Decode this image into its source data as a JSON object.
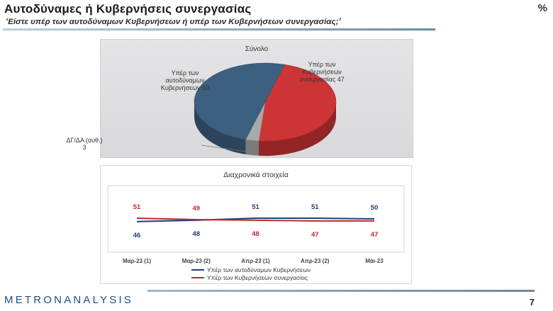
{
  "header": {
    "title": "Αυτοδύναμες ή Κυβερνήσεις συνεργασίας",
    "subtitle": "‘Είστε υπέρ των αυτοδύναμων Κυβερνήσεων ή υπέρ των Κυβερνήσεων συνεργασίας;’",
    "unit": "%"
  },
  "footer": {
    "logo": "METRONANALYSIS",
    "page_number": "7"
  },
  "colors": {
    "blue": "#355c7d",
    "red": "#cc2a2a",
    "grey": "#a8a8a8"
  },
  "chart_data": [
    {
      "type": "pie",
      "title": "Σύνολο",
      "slices": [
        {
          "label_lines": [
            "Υπέρ των",
            "αυτοδύναμων",
            "Κυβερνήσεων 50"
          ],
          "category": "Υπέρ των αυτοδύναμων Κυβερνήσεων",
          "value": 50,
          "color": "#3d5f80"
        },
        {
          "label_lines": [
            "Υπέρ των",
            "Κυβερνήσεων",
            "συνεργασίας 47"
          ],
          "category": "Υπέρ των Κυβερνήσεων συνεργασίας",
          "value": 47,
          "color": "#cd3436"
        },
        {
          "label_lines": [
            "ΔΓ/ΔΑ (αυθ.)",
            "3"
          ],
          "category": "ΔΓ/ΔΑ (αυθ.)",
          "value": 3,
          "color": "#a9a9a9"
        }
      ]
    },
    {
      "type": "line",
      "title": "Διαχρονικά στοιχεία",
      "categories": [
        "Μαρ-23 (1)",
        "Μαρ-23 (2)",
        "Απρ-23 (1)",
        "Απρ-23 (2)",
        "Μάι-23"
      ],
      "ylim": [
        0,
        100
      ],
      "series": [
        {
          "name": "Υπέρ των αυτοδύναμων Κυβερνήσεων",
          "values": [
            46,
            48,
            51,
            51,
            50
          ],
          "color": "#1f3f7a"
        },
        {
          "name": "Υπέρ των Κυβερνήσεων συνεργασίας",
          "values": [
            51,
            49,
            48,
            47,
            47
          ],
          "color": "#c0282c"
        }
      ]
    }
  ]
}
